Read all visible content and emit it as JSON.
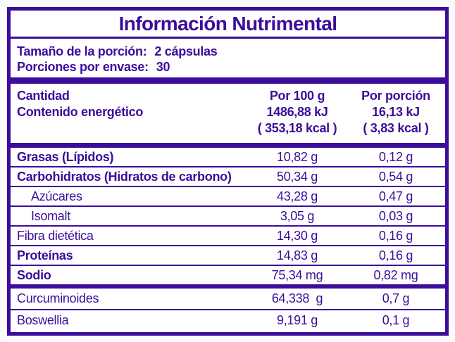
{
  "colors": {
    "purple": "#3C0D9B",
    "background": "#FBFBFC"
  },
  "title": "Información Nutrimental",
  "serving": {
    "size_label": "Tamaño de la porción:",
    "size_value": "2 cápsulas",
    "count_label": "Porciones por envase:",
    "count_value": "30"
  },
  "table": {
    "header": {
      "amount_label": "Cantidad",
      "energy_label": "Contenido energético",
      "per100": {
        "title": "Por 100 g",
        "kj": "1486,88 kJ",
        "kcal": "( 353,18 kcal )"
      },
      "portion": {
        "title": "Por porción",
        "kj": "16,13 kJ",
        "kcal": "( 3,83 kcal )"
      }
    },
    "rows": [
      {
        "label": "Grasas (Lípidos)",
        "per100": "10,82 g",
        "portion": "0,12 g"
      },
      {
        "label": "Carbohidratos (Hidratos de carbono)",
        "per100": "50,34 g",
        "portion": "0,54 g"
      },
      {
        "label": "Azúcares",
        "per100": "43,28 g",
        "portion": "0,47 g"
      },
      {
        "label": "Isomalt",
        "per100": "3,05 g",
        "portion": "0,03 g"
      },
      {
        "label": "Fibra dietética",
        "per100": "14,30 g",
        "portion": "0,16 g"
      },
      {
        "label": "Proteínas",
        "per100": "14,83 g",
        "portion": "0,16 g"
      },
      {
        "label": "Sodio",
        "per100": "75,34 mg",
        "portion": "0,82 mg"
      }
    ],
    "extra_rows": [
      {
        "label": "Curcuminoides",
        "per100": "64,338  g",
        "portion": "0,7 g"
      },
      {
        "label": "Boswellia",
        "per100": "9,191 g",
        "portion": "0,1 g"
      }
    ]
  }
}
